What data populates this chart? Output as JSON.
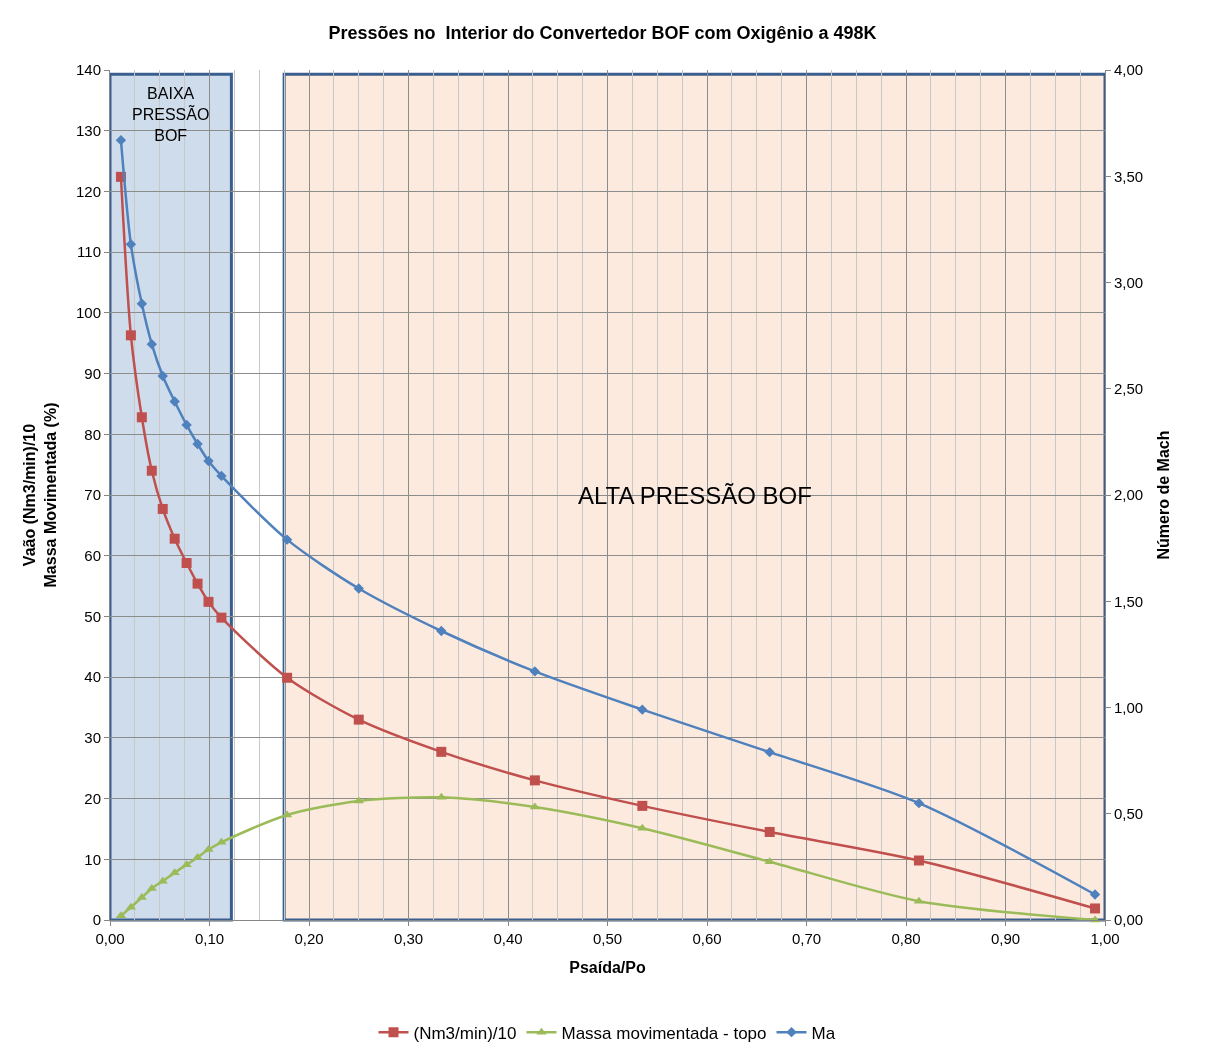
{
  "chart_data": {
    "type": "line",
    "title": "Pressões no  Interior do Convertedor BOF com Oxigênio a 498K",
    "xlabel": "Psaída/Po",
    "ylabel": "Vaão (Nm3/min)/10\nMassa Movimentada (%)",
    "y2label": "Número de Mach",
    "x": [
      0.011,
      0.021,
      0.032,
      0.042,
      0.053,
      0.065,
      0.077,
      0.088,
      0.099,
      0.112,
      0.178,
      0.25,
      0.333,
      0.427,
      0.535,
      0.663,
      0.813,
      0.99
    ],
    "series": [
      {
        "name": "(Nm3/min)/10",
        "color": "#c0504d",
        "marker": "square",
        "values": [
          122.4,
          96.3,
          82.8,
          74.0,
          67.7,
          62.8,
          58.8,
          55.4,
          52.4,
          49.8,
          39.9,
          33.0,
          27.7,
          23.0,
          18.8,
          14.5,
          9.8,
          1.9
        ]
      },
      {
        "name": "Massa movimentada - topo",
        "color": "#9bbb59",
        "marker": "triangle",
        "values": [
          0.7,
          2.1,
          3.7,
          5.2,
          6.4,
          7.8,
          9.1,
          10.3,
          11.6,
          12.8,
          17.3,
          19.6,
          20.2,
          18.6,
          15.1,
          9.6,
          3.1,
          0
        ]
      },
      {
        "name": "Ma",
        "color": "#4f81bd",
        "marker": "diamond",
        "axis": "y2",
        "values": [
          3.67,
          3.18,
          2.9,
          2.71,
          2.56,
          2.44,
          2.33,
          2.24,
          2.16,
          2.09,
          1.79,
          1.56,
          1.36,
          1.17,
          0.99,
          0.79,
          0.55,
          0.12
        ]
      }
    ],
    "xlim": [
      0,
      1
    ],
    "xticks": [
      {
        "value": 0,
        "label": "0,00"
      },
      {
        "value": 0.1,
        "label": "0,10"
      },
      {
        "value": 0.2,
        "label": "0,20"
      },
      {
        "value": 0.3,
        "label": "0,30"
      },
      {
        "value": 0.4,
        "label": "0,40"
      },
      {
        "value": 0.5,
        "label": "0,50"
      },
      {
        "value": 0.6,
        "label": "0,60"
      },
      {
        "value": 0.7,
        "label": "0,70"
      },
      {
        "value": 0.8,
        "label": "0,80"
      },
      {
        "value": 0.9,
        "label": "0,90"
      },
      {
        "value": 1,
        "label": "1,00"
      }
    ],
    "ylim": [
      0,
      140
    ],
    "yticks": [
      0,
      10,
      20,
      30,
      40,
      50,
      60,
      70,
      80,
      90,
      100,
      110,
      120,
      130,
      140
    ],
    "y2lim": [
      0,
      4
    ],
    "y2ticks": [
      {
        "value": 0,
        "label": "0,00"
      },
      {
        "value": 0.5,
        "label": "0,50"
      },
      {
        "value": 1,
        "label": "1,00"
      },
      {
        "value": 1.5,
        "label": "1,50"
      },
      {
        "value": 2,
        "label": "2,00"
      },
      {
        "value": 2.5,
        "label": "2,50"
      },
      {
        "value": 3,
        "label": "3,00"
      },
      {
        "value": 3.5,
        "label": "3,50"
      },
      {
        "value": 4,
        "label": "4,00"
      }
    ],
    "bands": [
      {
        "axis": "x",
        "from": 0,
        "to": 0.122,
        "label": "BAIXA\nPRESSÃO\nBOF",
        "color": "#cfdcec"
      },
      {
        "axis": "x",
        "from": 0.175,
        "to": 1,
        "label": "ALTA PRESSÃO BOF",
        "color": "#fdeadf"
      }
    ],
    "grid": true,
    "legend": "bottom",
    "line_style": "solid"
  }
}
